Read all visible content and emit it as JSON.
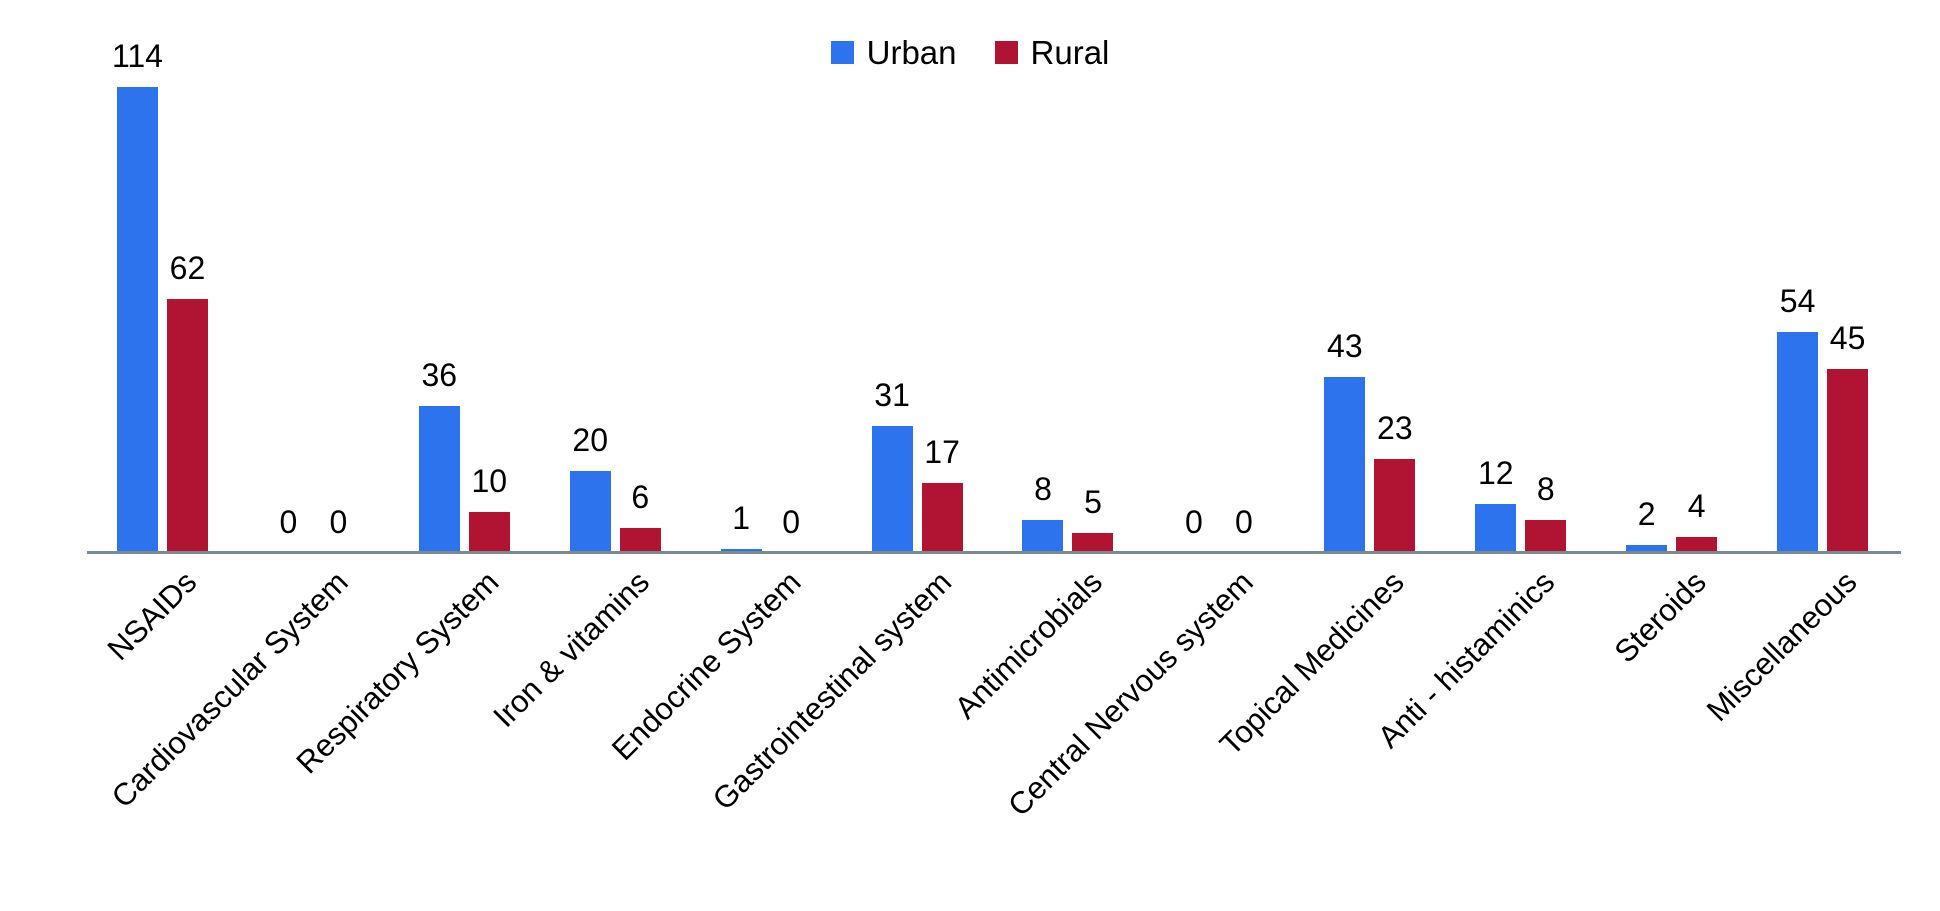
{
  "chart_data": {
    "type": "bar",
    "title": "",
    "categories": [
      "NSAIDs",
      "Cardiovascular System",
      "Respiratory System",
      "Iron & vitamins",
      "Endocrine System",
      "Gastrointestinal system",
      "Antimicrobials",
      "Central Nervous system",
      "Topical Medicines",
      "Anti - histaminics",
      "Steroids",
      "Miscellaneous"
    ],
    "series": [
      {
        "name": "Urban",
        "color": "#2e73ee",
        "values": [
          114,
          0,
          36,
          20,
          1,
          31,
          8,
          0,
          43,
          12,
          2,
          54
        ]
      },
      {
        "name": "Rural",
        "color": "#b11333",
        "values": [
          62,
          0,
          10,
          6,
          0,
          17,
          5,
          0,
          23,
          8,
          4,
          45
        ]
      }
    ],
    "xlabel": "",
    "ylabel": "",
    "ylim": [
      0,
      120
    ],
    "grid": false,
    "y_axis_visible": false,
    "value_labels": true,
    "legend_position": "top-center",
    "axis_line_color": "#7a8a8e",
    "x_tick_rotation_deg": 45
  }
}
